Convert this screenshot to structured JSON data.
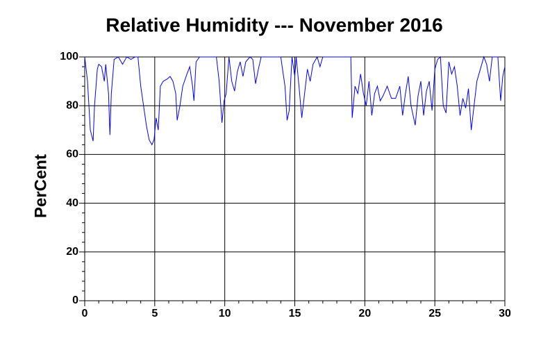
{
  "chart_data": {
    "type": "line",
    "title": "Relative Humidity --- November 2016",
    "ylabel": "PerCent",
    "x": [
      0,
      0.2,
      0.4,
      0.6,
      0.7,
      0.9,
      1.0,
      1.2,
      1.4,
      1.5,
      1.7,
      1.8,
      1.9,
      2.1,
      2.4,
      2.7,
      3.0,
      3.3,
      3.6,
      3.8,
      4.0,
      4.2,
      4.4,
      4.6,
      4.8,
      4.95,
      5.1,
      5.25,
      5.4,
      5.6,
      5.9,
      6.1,
      6.3,
      6.5,
      6.6,
      6.8,
      7.0,
      7.3,
      7.5,
      7.7,
      7.8,
      7.95,
      8.2,
      8.5,
      9.0,
      9.4,
      9.6,
      9.8,
      9.95,
      10.1,
      10.3,
      10.5,
      10.7,
      10.9,
      11.1,
      11.3,
      11.5,
      11.8,
      12.0,
      12.2,
      12.4,
      12.6,
      13.0,
      14.0,
      14.3,
      14.45,
      14.6,
      14.8,
      15.0,
      15.1,
      15.3,
      15.5,
      15.7,
      15.9,
      16.1,
      16.3,
      16.6,
      16.8,
      17.0,
      17.5,
      18.5,
      19.0,
      19.1,
      19.3,
      19.5,
      19.7,
      19.9,
      20.1,
      20.3,
      20.5,
      20.7,
      20.9,
      21.1,
      21.3,
      21.6,
      21.9,
      22.2,
      22.5,
      22.7,
      22.9,
      23.1,
      23.3,
      23.6,
      23.8,
      24.0,
      24.2,
      24.4,
      24.6,
      24.8,
      25.0,
      25.2,
      25.4,
      25.6,
      25.8,
      26.0,
      26.2,
      26.4,
      26.6,
      26.8,
      27.0,
      27.2,
      27.4,
      27.6,
      27.8,
      28.0,
      28.2,
      28.5,
      28.7,
      28.9,
      29.1,
      29.3,
      29.5,
      29.7,
      29.85,
      30
    ],
    "values": [
      100,
      90,
      70,
      65.5,
      80,
      95,
      97,
      96,
      90,
      97,
      85,
      68,
      85,
      99,
      100,
      97,
      100,
      99,
      100,
      100,
      88,
      80,
      72,
      66,
      64,
      66,
      75,
      70,
      88,
      90,
      91,
      92,
      90,
      85,
      74,
      80,
      88,
      93,
      96,
      88,
      82,
      98,
      100,
      100,
      100,
      100,
      90,
      73,
      82,
      85,
      100,
      90,
      86,
      94,
      98,
      92,
      98,
      100,
      99,
      89,
      95,
      100,
      100,
      100,
      88,
      74,
      78,
      100,
      92,
      100,
      88,
      75,
      85,
      95,
      90,
      97,
      100,
      96,
      100,
      100,
      100,
      100,
      75,
      88,
      85,
      93,
      85,
      80,
      90,
      76,
      85,
      88,
      82,
      84,
      88,
      83,
      83,
      88,
      76,
      85,
      92,
      80,
      72,
      84,
      90,
      76,
      86,
      90,
      78,
      95,
      99,
      100,
      80,
      77,
      98,
      93,
      96,
      88,
      76,
      83,
      79,
      87,
      70,
      80,
      90,
      94,
      100,
      97,
      90,
      100,
      100,
      100,
      82,
      92,
      96
    ],
    "color": "#0000ff",
    "xlim": [
      0,
      30
    ],
    "xticks": [
      0,
      5,
      10,
      15,
      20,
      25,
      30
    ],
    "xminorticks": [
      1,
      2,
      3,
      4,
      6,
      7,
      8,
      9,
      11,
      12,
      13,
      14,
      16,
      17,
      18,
      19,
      21,
      22,
      23,
      24,
      26,
      27,
      28,
      29
    ],
    "ylim": [
      0,
      100
    ],
    "yticks": [
      0,
      20,
      40,
      60,
      80,
      100
    ],
    "yminorticks": [
      4,
      8,
      12,
      16,
      24,
      28,
      32,
      36,
      44,
      48,
      52,
      56,
      64,
      68,
      72,
      76,
      84,
      88,
      92,
      96
    ],
    "grid": true
  }
}
